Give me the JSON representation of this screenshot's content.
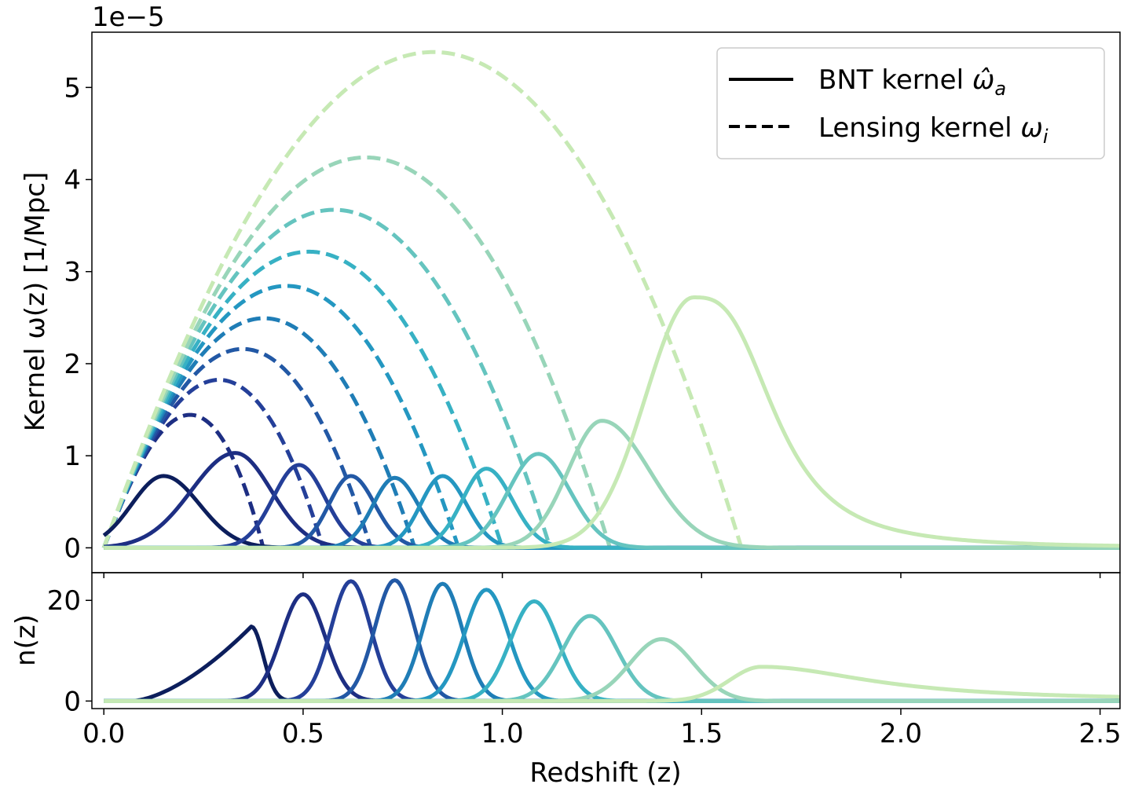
{
  "chart_data": [
    {
      "type": "line",
      "panel": "top",
      "ylabel": "Kernel ω(z) [1/Mpc]",
      "offset_label": "1e−5",
      "xlim": [
        -0.03,
        2.55
      ],
      "ylim": [
        -0.27,
        5.6
      ],
      "yticks": [
        0,
        1,
        2,
        3,
        4,
        5
      ],
      "ytick_labels": [
        "0",
        "1",
        "2",
        "3",
        "4",
        "5"
      ],
      "colors": [
        "#0c1e5c",
        "#1d2e83",
        "#243f99",
        "#2258a5",
        "#1f7db6",
        "#2497c1",
        "#37b1c4",
        "#65c4bf",
        "#98d5b9",
        "#c6e9b4"
      ],
      "legend": {
        "loc": "upper right",
        "entries": [
          {
            "style": "solid",
            "label": "BNT kernel ω̂ₐ",
            "text": "BNT kernel ",
            "math": "ω̂",
            "sub": "a"
          },
          {
            "style": "dashed",
            "label": "Lensing kernel ωᵢ",
            "text": "Lensing kernel ",
            "math": "ω",
            "sub": "i"
          }
        ]
      },
      "lensing_kernels": [
        {
          "name": "Lensing kernel bin 1",
          "z_peak": 0.25,
          "peak": 1.4,
          "z_end": 0.4
        },
        {
          "name": "Lensing kernel bin 2",
          "z_peak": 0.32,
          "peak": 1.8,
          "z_end": 0.55
        },
        {
          "name": "Lensing kernel bin 3",
          "z_peak": 0.38,
          "peak": 2.14,
          "z_end": 0.67
        },
        {
          "name": "Lensing kernel bin 4",
          "z_peak": 0.43,
          "peak": 2.48,
          "z_end": 0.78
        },
        {
          "name": "Lensing kernel bin 5",
          "z_peak": 0.49,
          "peak": 2.83,
          "z_end": 0.89
        },
        {
          "name": "Lensing kernel bin 6",
          "z_peak": 0.55,
          "peak": 3.2,
          "z_end": 1.0
        },
        {
          "name": "Lensing kernel bin 7",
          "z_peak": 0.62,
          "peak": 3.65,
          "z_end": 1.12
        },
        {
          "name": "Lensing kernel bin 8",
          "z_peak": 0.71,
          "peak": 4.21,
          "z_end": 1.27
        },
        {
          "name": "Lensing kernel bin 9",
          "z_peak": 0.89,
          "peak": 5.35,
          "z_end": 1.6
        }
      ],
      "bnt_kernels": [
        {
          "name": "BNT kernel bin 1",
          "z_peak": 0.15,
          "peak": 0.78,
          "sigma_left": 0.08,
          "sigma_right": 0.09
        },
        {
          "name": "BNT kernel bin 2",
          "z_peak": 0.33,
          "peak": 1.03,
          "sigma_left": 0.11,
          "sigma_right": 0.09
        },
        {
          "name": "BNT kernel bin 3",
          "z_peak": 0.49,
          "peak": 0.9,
          "sigma_left": 0.065,
          "sigma_right": 0.065
        },
        {
          "name": "BNT kernel bin 4",
          "z_peak": 0.62,
          "peak": 0.78,
          "sigma_left": 0.055,
          "sigma_right": 0.06
        },
        {
          "name": "BNT kernel bin 5",
          "z_peak": 0.73,
          "peak": 0.76,
          "sigma_left": 0.055,
          "sigma_right": 0.06
        },
        {
          "name": "BNT kernel bin 6",
          "z_peak": 0.85,
          "peak": 0.78,
          "sigma_left": 0.055,
          "sigma_right": 0.06
        },
        {
          "name": "BNT kernel bin 7",
          "z_peak": 0.96,
          "peak": 0.86,
          "sigma_left": 0.06,
          "sigma_right": 0.065
        },
        {
          "name": "BNT kernel bin 8",
          "z_peak": 1.09,
          "peak": 1.02,
          "sigma_left": 0.075,
          "sigma_right": 0.08
        },
        {
          "name": "BNT kernel bin 9",
          "z_peak": 1.25,
          "peak": 1.38,
          "sigma_left": 0.085,
          "sigma_right": 0.12
        },
        {
          "name": "BNT kernel bin 10",
          "z_peak": 1.48,
          "peak": 2.72,
          "sigma_left": 0.12,
          "tail_scale": 0.28
        }
      ]
    },
    {
      "type": "line",
      "panel": "bottom",
      "ylabel": "n(z)",
      "xlabel": "Redshift (z)",
      "xlim": [
        -0.03,
        2.55
      ],
      "ylim": [
        -1.5,
        25.5
      ],
      "yticks": [
        0,
        20
      ],
      "ytick_labels": [
        "0",
        "20"
      ],
      "xticks": [
        0.0,
        0.5,
        1.0,
        1.5,
        2.0,
        2.5
      ],
      "xtick_labels": [
        "0.0",
        "0.5",
        "1.0",
        "1.5",
        "2.0",
        "2.5"
      ],
      "series": [
        {
          "name": "n(z) bin 1",
          "type": "rising",
          "z_start": 0.07,
          "z_peak": 0.37,
          "peak": 14.8,
          "fall_sigma": 0.03
        },
        {
          "name": "n(z) bin 2",
          "z_peak": 0.5,
          "peak": 21.2,
          "sigma": 0.055
        },
        {
          "name": "n(z) bin 3",
          "z_peak": 0.62,
          "peak": 23.8,
          "sigma": 0.05
        },
        {
          "name": "n(z) bin 4",
          "z_peak": 0.73,
          "peak": 24.0,
          "sigma": 0.05
        },
        {
          "name": "n(z) bin 5",
          "z_peak": 0.85,
          "peak": 23.3,
          "sigma": 0.05
        },
        {
          "name": "n(z) bin 6",
          "z_peak": 0.96,
          "peak": 22.1,
          "sigma": 0.055
        },
        {
          "name": "n(z) bin 7",
          "z_peak": 1.08,
          "peak": 19.8,
          "sigma": 0.06
        },
        {
          "name": "n(z) bin 8",
          "z_peak": 1.22,
          "peak": 16.9,
          "sigma": 0.068
        },
        {
          "name": "n(z) bin 9",
          "z_peak": 1.4,
          "peak": 12.3,
          "sigma": 0.08
        },
        {
          "name": "n(z) bin 10",
          "type": "tail",
          "z_peak": 1.65,
          "peak": 6.8,
          "sigma_left": 0.08,
          "tail_scale": 0.45
        }
      ]
    }
  ]
}
